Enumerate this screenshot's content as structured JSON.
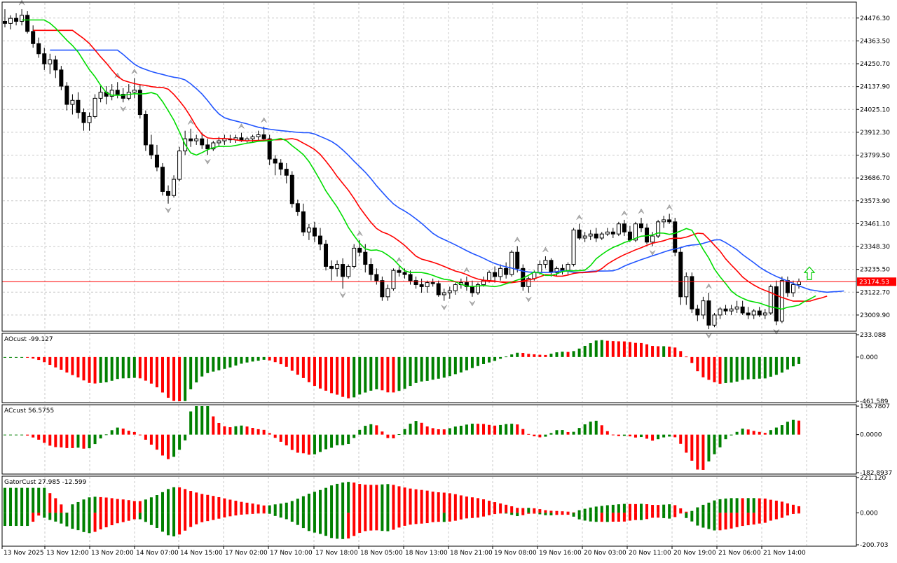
{
  "chart_data": [
    {
      "type": "candlestick",
      "title": "",
      "price_levels": [
        "24476.30",
        "24363.50",
        "24250.70",
        "24137.90",
        "24025.10",
        "23912.30",
        "23799.50",
        "23686.70",
        "23573.90",
        "23461.10",
        "23348.30",
        "23235.50",
        "23122.70",
        "23009.90"
      ],
      "current_price_label": "23174.53",
      "current_price": 23174.53,
      "ylim": [
        22930,
        24555
      ],
      "x_labels": [
        "13 Nov 2025",
        "13 Nov 12:00",
        "13 Nov 20:00",
        "14 Nov 07:00",
        "14 Nov 15:00",
        "17 Nov 02:00",
        "17 Nov 10:00",
        "17 Nov 18:00",
        "18 Nov 05:00",
        "18 Nov 13:00",
        "18 Nov 21:00",
        "19 Nov 08:00",
        "19 Nov 16:00",
        "20 Nov 03:00",
        "20 Nov 11:00",
        "20 Nov 19:00",
        "21 Nov 06:00",
        "21 Nov 14:00"
      ],
      "candles": [
        [
          24460,
          24520,
          24430,
          24450
        ],
        [
          24450,
          24490,
          24420,
          24475
        ],
        [
          24475,
          24500,
          24440,
          24460
        ],
        [
          24460,
          24520,
          24440,
          24490
        ],
        [
          24490,
          24510,
          24400,
          24410
        ],
        [
          24410,
          24440,
          24330,
          24350
        ],
        [
          24350,
          24380,
          24280,
          24300
        ],
        [
          24300,
          24330,
          24220,
          24250
        ],
        [
          24250,
          24300,
          24200,
          24270
        ],
        [
          24270,
          24290,
          24180,
          24220
        ],
        [
          24220,
          24240,
          24120,
          24140
        ],
        [
          24140,
          24160,
          24020,
          24050
        ],
        [
          24050,
          24100,
          24000,
          24070
        ],
        [
          24070,
          24110,
          23980,
          24010
        ],
        [
          24010,
          24030,
          23920,
          23960
        ],
        [
          23960,
          24010,
          23920,
          23990
        ],
        [
          23990,
          24100,
          23980,
          24080
        ],
        [
          24080,
          24140,
          24060,
          24110
        ],
        [
          24110,
          24140,
          24050,
          24090
        ],
        [
          24090,
          24150,
          24070,
          24120
        ],
        [
          24120,
          24160,
          24080,
          24100
        ],
        [
          24100,
          24130,
          24060,
          24080
        ],
        [
          24080,
          24150,
          24070,
          24110
        ],
        [
          24110,
          24180,
          24080,
          24120
        ],
        [
          24120,
          24150,
          23980,
          24000
        ],
        [
          24000,
          24020,
          23820,
          23850
        ],
        [
          23850,
          23900,
          23780,
          23800
        ],
        [
          23800,
          23850,
          23720,
          23740
        ],
        [
          23740,
          23760,
          23600,
          23620
        ],
        [
          23620,
          23650,
          23560,
          23600
        ],
        [
          23600,
          23700,
          23590,
          23680
        ],
        [
          23680,
          23840,
          23670,
          23820
        ],
        [
          23820,
          23920,
          23800,
          23880
        ],
        [
          23880,
          23930,
          23840,
          23870
        ],
        [
          23870,
          23900,
          23850,
          23880
        ],
        [
          23880,
          23910,
          23830,
          23850
        ],
        [
          23850,
          23880,
          23800,
          23830
        ],
        [
          23830,
          23870,
          23820,
          23860
        ],
        [
          23860,
          23890,
          23840,
          23870
        ],
        [
          23870,
          23900,
          23850,
          23880
        ],
        [
          23880,
          23900,
          23860,
          23875
        ],
        [
          23875,
          23900,
          23860,
          23885
        ],
        [
          23885,
          23910,
          23865,
          23870
        ],
        [
          23870,
          23890,
          23860,
          23880
        ],
        [
          23880,
          23900,
          23860,
          23890
        ],
        [
          23890,
          23920,
          23870,
          23900
        ],
        [
          23900,
          23940,
          23870,
          23880
        ],
        [
          23880,
          23900,
          23750,
          23780
        ],
        [
          23780,
          23800,
          23700,
          23760
        ],
        [
          23760,
          23780,
          23700,
          23730
        ],
        [
          23730,
          23760,
          23660,
          23700
        ],
        [
          23700,
          23720,
          23540,
          23560
        ],
        [
          23560,
          23580,
          23500,
          23520
        ],
        [
          23520,
          23560,
          23400,
          23420
        ],
        [
          23420,
          23460,
          23380,
          23440
        ],
        [
          23440,
          23470,
          23370,
          23400
        ],
        [
          23400,
          23440,
          23330,
          23360
        ],
        [
          23360,
          23380,
          23230,
          23250
        ],
        [
          23250,
          23280,
          23180,
          23240
        ],
        [
          23240,
          23280,
          23200,
          23260
        ],
        [
          23260,
          23290,
          23140,
          23200
        ],
        [
          23200,
          23260,
          23190,
          23250
        ],
        [
          23250,
          23360,
          23240,
          23340
        ],
        [
          23340,
          23380,
          23300,
          23320
        ],
        [
          23320,
          23360,
          23220,
          23260
        ],
        [
          23260,
          23290,
          23180,
          23210
        ],
        [
          23210,
          23240,
          23160,
          23180
        ],
        [
          23180,
          23200,
          23080,
          23100
        ],
        [
          23100,
          23160,
          23080,
          23140
        ],
        [
          23140,
          23240,
          23130,
          23230
        ],
        [
          23230,
          23250,
          23200,
          23220
        ],
        [
          23220,
          23240,
          23190,
          23210
        ],
        [
          23210,
          23230,
          23160,
          23180
        ],
        [
          23180,
          23200,
          23140,
          23160
        ],
        [
          23160,
          23190,
          23120,
          23150
        ],
        [
          23150,
          23180,
          23120,
          23170
        ],
        [
          23170,
          23190,
          23150,
          23165
        ],
        [
          23165,
          23180,
          23100,
          23110
        ],
        [
          23110,
          23140,
          23080,
          23120
        ],
        [
          23120,
          23150,
          23090,
          23130
        ],
        [
          23130,
          23170,
          23110,
          23160
        ],
        [
          23160,
          23190,
          23140,
          23170
        ],
        [
          23170,
          23200,
          23130,
          23150
        ],
        [
          23150,
          23180,
          23100,
          23120
        ],
        [
          23120,
          23170,
          23110,
          23160
        ],
        [
          23160,
          23200,
          23150,
          23180
        ],
        [
          23180,
          23230,
          23170,
          23220
        ],
        [
          23220,
          23250,
          23170,
          23200
        ],
        [
          23200,
          23260,
          23180,
          23240
        ],
        [
          23240,
          23270,
          23190,
          23210
        ],
        [
          23210,
          23330,
          23200,
          23320
        ],
        [
          23320,
          23350,
          23220,
          23240
        ],
        [
          23240,
          23260,
          23130,
          23150
        ],
        [
          23150,
          23200,
          23120,
          23190
        ],
        [
          23190,
          23230,
          23180,
          23220
        ],
        [
          23220,
          23280,
          23210,
          23260
        ],
        [
          23260,
          23300,
          23240,
          23280
        ],
        [
          23280,
          23290,
          23200,
          23220
        ],
        [
          23220,
          23250,
          23200,
          23240
        ],
        [
          23240,
          23260,
          23210,
          23230
        ],
        [
          23230,
          23270,
          23210,
          23260
        ],
        [
          23260,
          23440,
          23250,
          23430
        ],
        [
          23430,
          23460,
          23380,
          23390
        ],
        [
          23390,
          23420,
          23370,
          23400
        ],
        [
          23400,
          23430,
          23380,
          23410
        ],
        [
          23410,
          23440,
          23370,
          23390
        ],
        [
          23390,
          23420,
          23380,
          23410
        ],
        [
          23410,
          23440,
          23400,
          23420
        ],
        [
          23420,
          23440,
          23390,
          23410
        ],
        [
          23410,
          23470,
          23400,
          23460
        ],
        [
          23460,
          23480,
          23400,
          23420
        ],
        [
          23420,
          23450,
          23370,
          23380
        ],
        [
          23380,
          23470,
          23370,
          23460
        ],
        [
          23460,
          23490,
          23420,
          23440
        ],
        [
          23440,
          23460,
          23360,
          23370
        ],
        [
          23370,
          23420,
          23350,
          23400
        ],
        [
          23400,
          23480,
          23390,
          23470
        ],
        [
          23470,
          23500,
          23440,
          23480
        ],
        [
          23480,
          23510,
          23460,
          23470
        ],
        [
          23470,
          23490,
          23300,
          23320
        ],
        [
          23320,
          23340,
          23060,
          23100
        ],
        [
          23100,
          23220,
          23060,
          23200
        ],
        [
          23200,
          23220,
          23020,
          23040
        ],
        [
          23040,
          23060,
          22980,
          23010
        ],
        [
          23010,
          23100,
          22990,
          23080
        ],
        [
          23080,
          23120,
          22940,
          22960
        ],
        [
          22960,
          23020,
          22950,
          23010
        ],
        [
          23010,
          23050,
          22990,
          23040
        ],
        [
          23040,
          23060,
          23010,
          23030
        ],
        [
          23030,
          23060,
          23010,
          23040
        ],
        [
          23040,
          23080,
          23020,
          23050
        ],
        [
          23050,
          23080,
          23010,
          23020
        ],
        [
          23020,
          23050,
          22990,
          23010
        ],
        [
          23010,
          23040,
          22990,
          23030
        ],
        [
          23030,
          23050,
          23000,
          23010
        ],
        [
          23010,
          23040,
          22990,
          23020
        ],
        [
          23020,
          23160,
          23010,
          23150
        ],
        [
          23150,
          23180,
          22960,
          22980
        ],
        [
          22980,
          23200,
          22970,
          23180
        ],
        [
          23180,
          23200,
          23100,
          23120
        ],
        [
          23120,
          23180,
          23100,
          23160
        ],
        [
          23160,
          23190,
          23140,
          23175
        ]
      ],
      "series": [
        {
          "name": "",
          "color": "#2155ff"
        },
        {
          "name": "",
          "color": "#ff0000"
        },
        {
          "name": "",
          "color": "#00dd00"
        }
      ],
      "signal_arrow": {
        "direction": "up",
        "color": "#00cc00"
      }
    },
    {
      "type": "bar",
      "title": "AOcust -99.127",
      "levels": [
        "233.088",
        "0.000",
        "-461.589"
      ],
      "ylim": [
        -461.589,
        233.088
      ],
      "values_description": "oscillator histogram"
    },
    {
      "type": "bar",
      "title": "ACcust 56.5755",
      "levels": [
        "136.7807",
        "0.0000",
        "-182.8937"
      ],
      "ylim": [
        -182.8937,
        136.7807
      ]
    },
    {
      "type": "bar",
      "title": "GatorCust 27.985 -12.599",
      "levels": [
        "221.120",
        "0.000",
        "-200.703"
      ],
      "ylim": [
        -200.703,
        221.12
      ]
    }
  ],
  "colors": {
    "up_bar": "#008000",
    "down_bar": "#ff0000",
    "price_line": "#ff0000",
    "grid": "#c8c8c8"
  }
}
